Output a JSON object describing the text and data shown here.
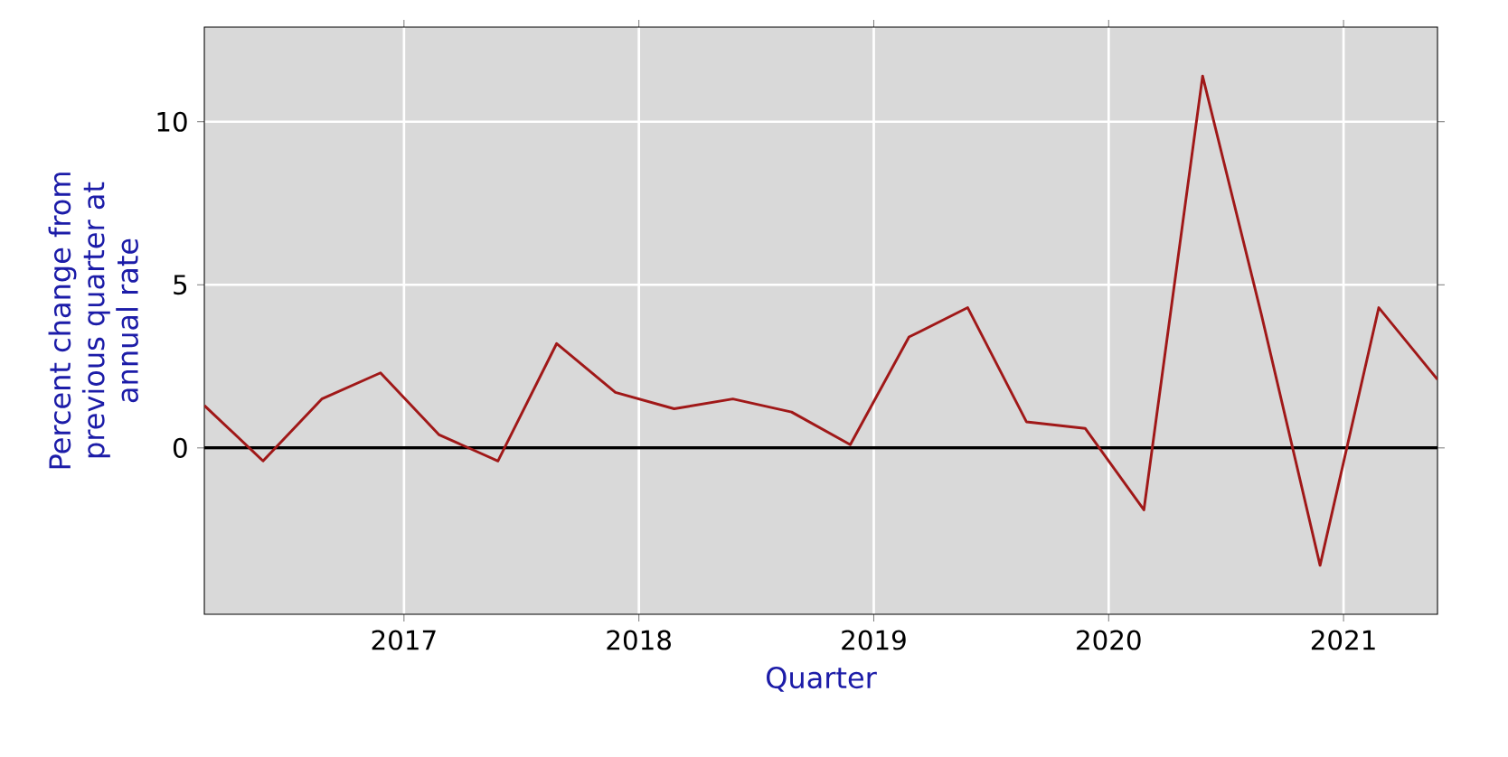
{
  "chart_data": {
    "type": "line",
    "xlabel": "Quarter",
    "ylabel": "Percent change from previous quarter at annual rate",
    "x": [
      2016.15,
      2016.4,
      2016.65,
      2016.9,
      2017.15,
      2017.4,
      2017.65,
      2017.9,
      2018.15,
      2018.4,
      2018.65,
      2018.9,
      2019.15,
      2019.4,
      2019.65,
      2019.9,
      2020.15,
      2020.4,
      2020.65,
      2020.9,
      2021.15,
      2021.4
    ],
    "series": [
      {
        "color": "#a01818",
        "values": [
          1.3,
          -0.4,
          1.5,
          2.3,
          0.4,
          -0.4,
          3.2,
          1.7,
          1.2,
          1.5,
          1.1,
          0.1,
          3.4,
          4.3,
          0.8,
          0.6,
          -1.9,
          11.4,
          4.1,
          -3.6,
          4.3,
          2.1
        ]
      }
    ],
    "xlim": [
      2016.15,
      2021.4
    ],
    "ylim": [
      -5.1,
      12.9
    ],
    "xticks": [
      2017,
      2018,
      2019,
      2020,
      2021
    ],
    "yticks": [
      0,
      5,
      10
    ],
    "grid": true,
    "ref_lines": [
      {
        "axis": "y",
        "value": 0,
        "color": "#000000"
      }
    ]
  }
}
